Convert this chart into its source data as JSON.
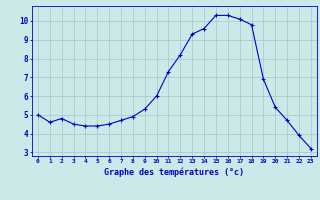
{
  "hours": [
    0,
    1,
    2,
    3,
    4,
    5,
    6,
    7,
    8,
    9,
    10,
    11,
    12,
    13,
    14,
    15,
    16,
    17,
    18,
    19,
    20,
    21,
    22,
    23
  ],
  "temperatures": [
    5.0,
    4.6,
    4.8,
    4.5,
    4.4,
    4.4,
    4.5,
    4.7,
    4.9,
    5.3,
    6.0,
    7.3,
    8.2,
    9.3,
    9.6,
    10.3,
    10.3,
    10.1,
    9.8,
    6.9,
    5.4,
    4.7,
    3.9,
    3.2
  ],
  "line_color": "#0000cc",
  "marker_color": "#0000cc",
  "bg_color": "#cce8e8",
  "grid_color": "#aacccc",
  "xlabel": "Graphe des températures (°c)",
  "xlabel_color": "#0000cc",
  "tick_label_color": "#0000cc",
  "ylim": [
    2.8,
    10.8
  ],
  "yticks": [
    3,
    4,
    5,
    6,
    7,
    8,
    9,
    10
  ],
  "xlim": [
    -0.5,
    23.5
  ]
}
